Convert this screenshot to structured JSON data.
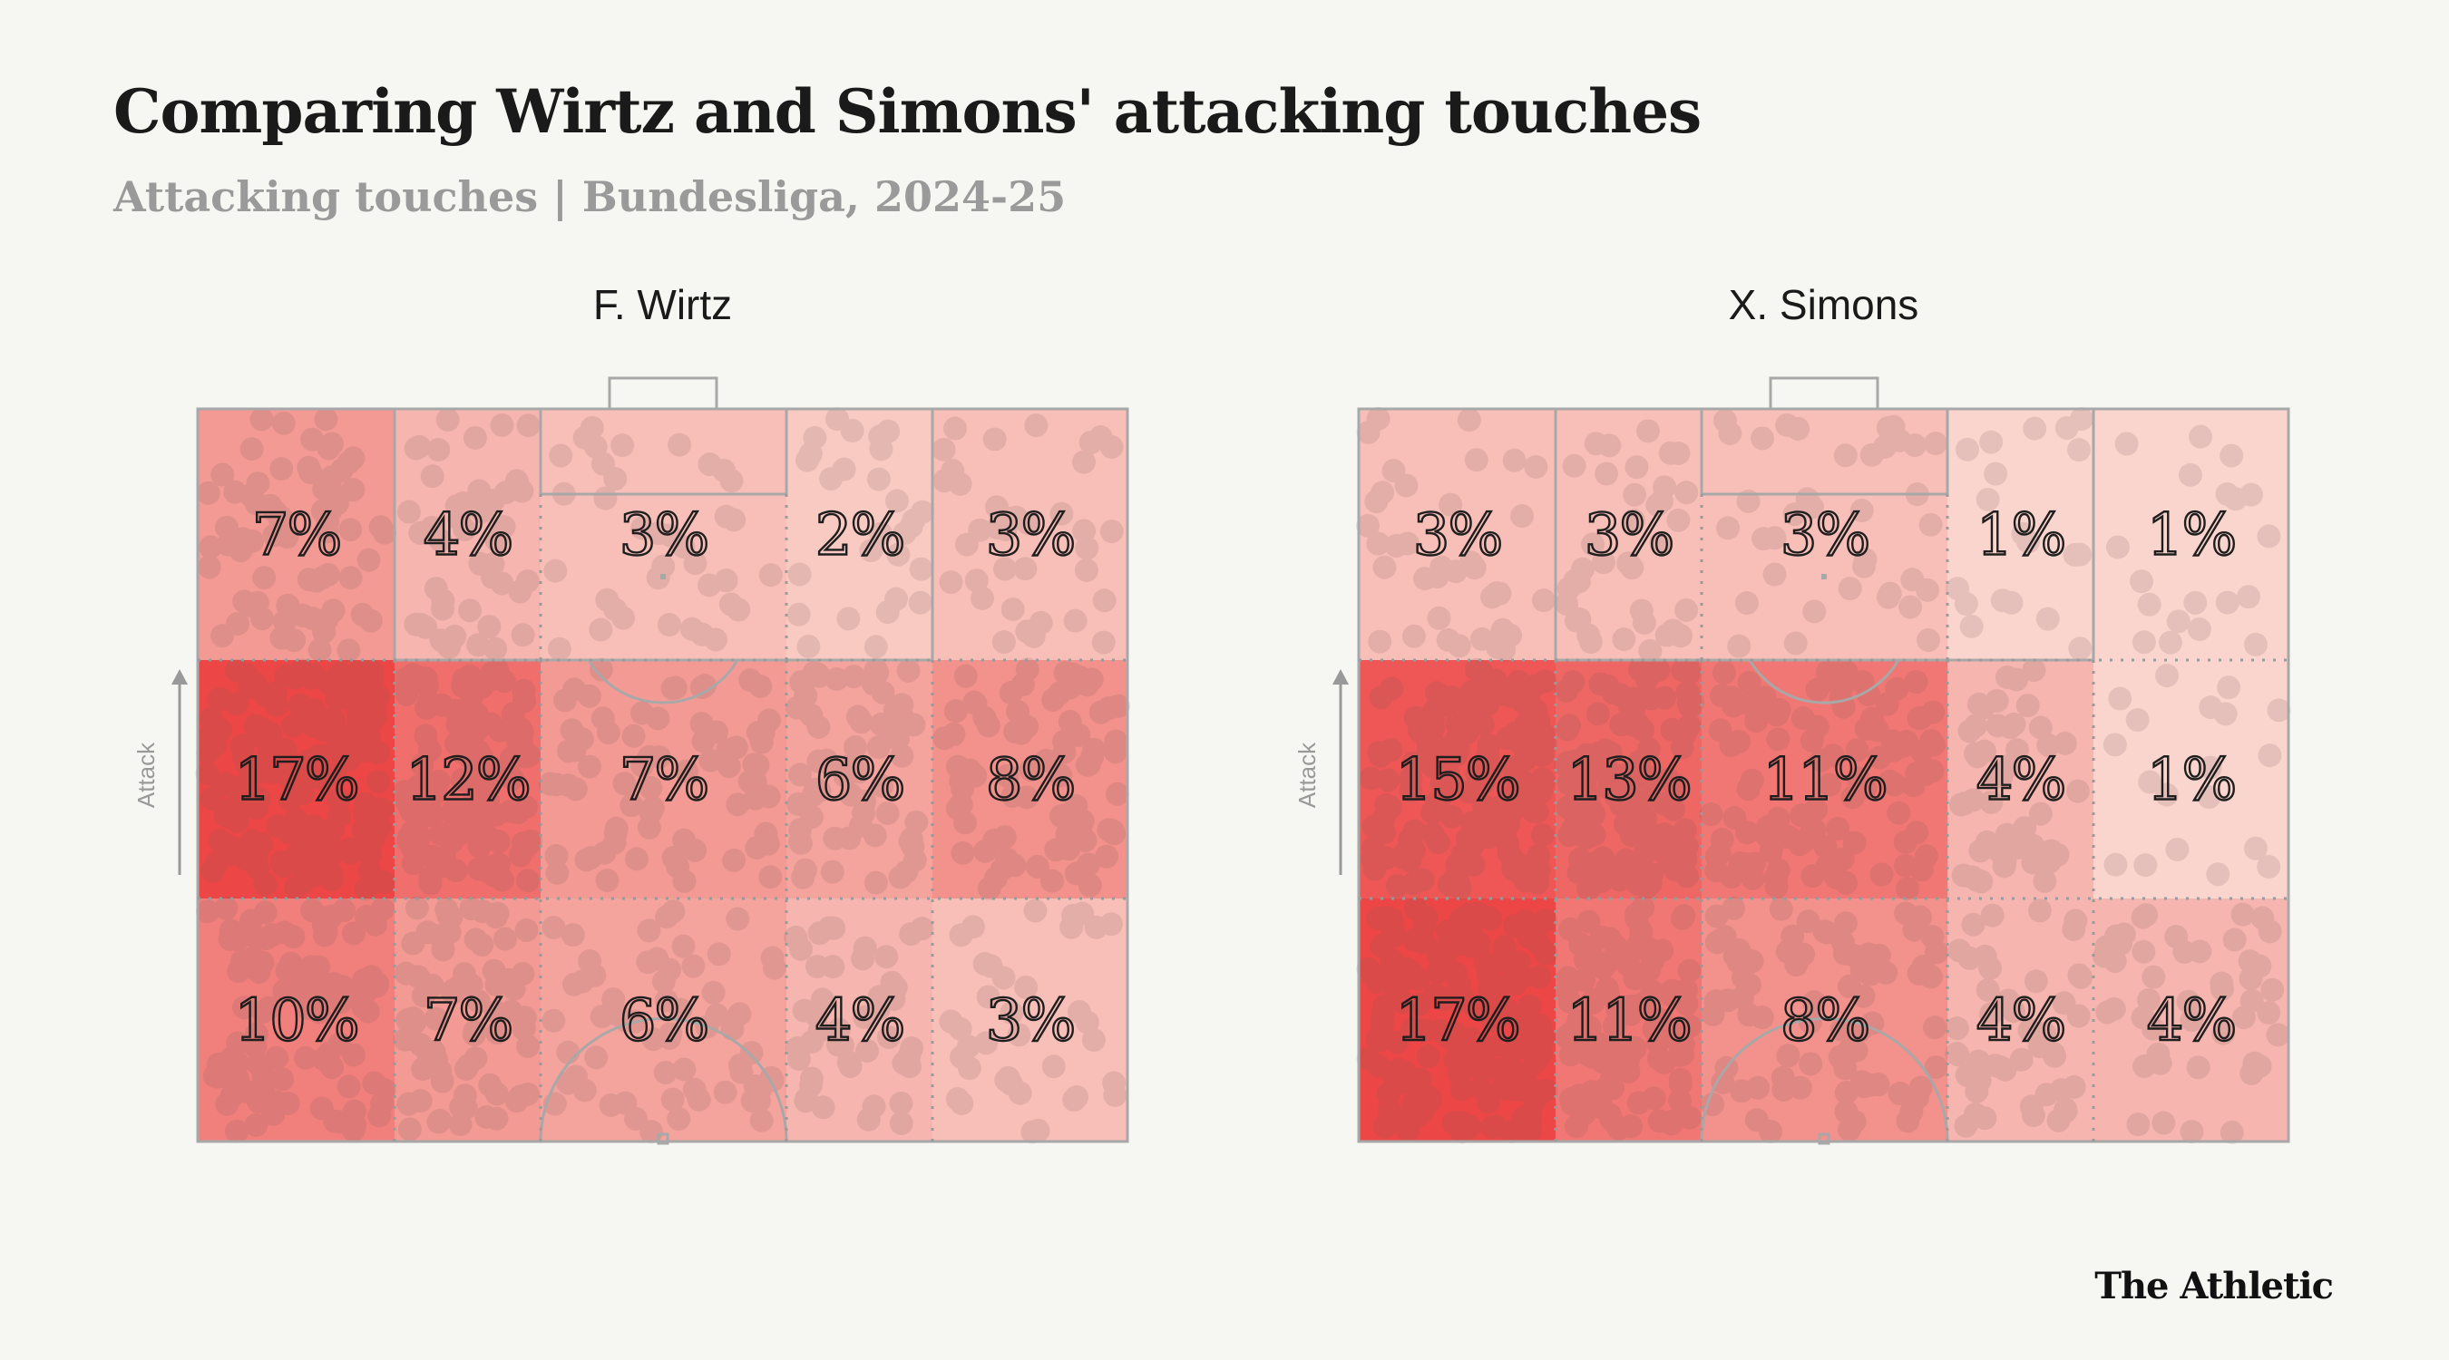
{
  "title": "Comparing Wirtz and Simons' attacking touches",
  "subtitle": "Attacking touches | Bundesliga, 2024-25",
  "brand": "The Athletic",
  "attack_label": "Attack",
  "colors": {
    "background": "#f6f6f2",
    "heat_low": "#fbe3da",
    "heat_high": "#ec4746",
    "pitch_lines": "#a8a8a8",
    "touch_dots": "#7a5a5a"
  },
  "chart_data": [
    {
      "type": "heatmap",
      "title": "F. Wirtz",
      "rows": [
        "top",
        "middle",
        "bottom"
      ],
      "columns": 5,
      "unit": "%",
      "values": [
        [
          7,
          4,
          3,
          2,
          3
        ],
        [
          17,
          12,
          7,
          6,
          8
        ],
        [
          10,
          7,
          6,
          4,
          3
        ]
      ]
    },
    {
      "type": "heatmap",
      "title": "X. Simons",
      "rows": [
        "top",
        "middle",
        "bottom"
      ],
      "columns": 5,
      "unit": "%",
      "values": [
        [
          3,
          3,
          3,
          1,
          1
        ],
        [
          15,
          13,
          11,
          4,
          1
        ],
        [
          17,
          11,
          8,
          4,
          4
        ]
      ]
    }
  ]
}
